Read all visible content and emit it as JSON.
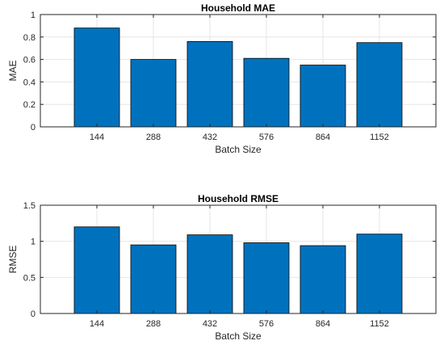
{
  "chart_data": [
    {
      "type": "bar",
      "title": "Household MAE",
      "xlabel": "Batch Size",
      "ylabel": "MAE",
      "categories": [
        "144",
        "288",
        "432",
        "576",
        "864",
        "1152"
      ],
      "values": [
        0.88,
        0.6,
        0.76,
        0.61,
        0.55,
        0.75
      ],
      "ylim": [
        0,
        1
      ],
      "yticks": [
        "0",
        "0.2",
        "0.4",
        "0.6",
        "0.8",
        "1"
      ],
      "ytick_values": [
        0,
        0.2,
        0.4,
        0.6,
        0.8,
        1
      ],
      "grid": true,
      "bar_color": "#0072bd"
    },
    {
      "type": "bar",
      "title": "Household RMSE",
      "xlabel": "Batch Size",
      "ylabel": "RMSE",
      "categories": [
        "144",
        "288",
        "432",
        "576",
        "864",
        "1152"
      ],
      "values": [
        1.2,
        0.95,
        1.09,
        0.98,
        0.94,
        1.1
      ],
      "ylim": [
        0,
        1.5
      ],
      "yticks": [
        "0",
        "0.5",
        "1",
        "1.5"
      ],
      "ytick_values": [
        0,
        0.5,
        1,
        1.5
      ],
      "grid": true,
      "bar_color": "#0072bd"
    }
  ]
}
